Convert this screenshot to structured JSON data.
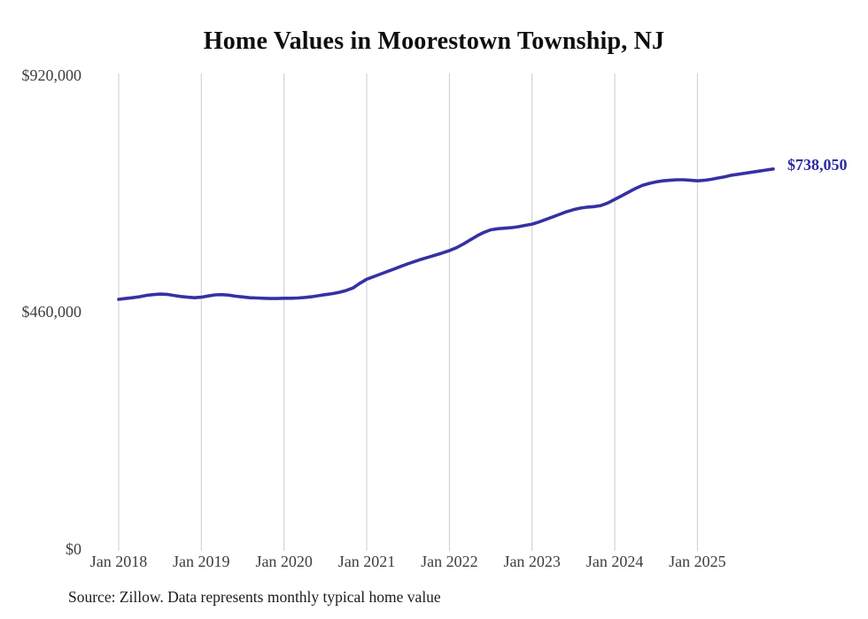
{
  "title": "Home Values in Moorestown Township, NJ",
  "source": "Source: Zillow. Data represents monthly typical home value",
  "colors": {
    "line": "#3531a3",
    "end_label": "#2d2b9e",
    "grid": "#cccccc",
    "axis_text": "#3e3e3e",
    "title_text": "#0e0e0e",
    "background": "#ffffff"
  },
  "chart_data": {
    "type": "line",
    "title": "Home Values in Moorestown Township, NJ",
    "xlabel": "",
    "ylabel": "",
    "ylim": [
      0,
      920000
    ],
    "grid": "vertical-only",
    "legend_position": "none",
    "last_value_label": "$738,050",
    "last_value": 738050,
    "y_ticks": [
      {
        "value": 920000,
        "label": "$920,000"
      },
      {
        "value": 460000,
        "label": "$460,000"
      },
      {
        "value": 0,
        "label": "$0"
      }
    ],
    "x_ticks": [
      {
        "month_index": 0,
        "label": "Jan 2018"
      },
      {
        "month_index": 12,
        "label": "Jan 2019"
      },
      {
        "month_index": 24,
        "label": "Jan 2020"
      },
      {
        "month_index": 36,
        "label": "Jan 2021"
      },
      {
        "month_index": 48,
        "label": "Jan 2022"
      },
      {
        "month_index": 60,
        "label": "Jan 2023"
      },
      {
        "month_index": 72,
        "label": "Jan 2024"
      },
      {
        "month_index": 84,
        "label": "Jan 2025"
      }
    ],
    "series": [
      {
        "name": "Monthly typical home value",
        "start": "2018-01",
        "frequency": "monthly",
        "values": [
          485000,
          486500,
          488000,
          490000,
          492500,
          494000,
          495000,
          494500,
          492500,
          490500,
          489000,
          488000,
          489000,
          491500,
          493500,
          494000,
          493000,
          491000,
          489500,
          488000,
          487500,
          487000,
          486500,
          486500,
          487000,
          487000,
          487500,
          488500,
          490000,
          492000,
          494000,
          496000,
          498500,
          502000,
          507000,
          516000,
          524000,
          529000,
          534000,
          539000,
          544000,
          549000,
          554000,
          558500,
          563000,
          567000,
          571000,
          575000,
          579500,
          585000,
          592000,
          600000,
          608000,
          615000,
          620000,
          622000,
          623000,
          624000,
          626000,
          628500,
          631000,
          635000,
          640000,
          645000,
          650000,
          655000,
          659000,
          662000,
          664000,
          665000,
          667000,
          672000,
          679000,
          686000,
          693000,
          700000,
          706000,
          710000,
          713000,
          715000,
          716000,
          717000,
          717000,
          716000,
          715000,
          716000,
          718000,
          720500,
          723000,
          726000,
          728000,
          730000,
          732000,
          734000,
          736000,
          738050
        ]
      }
    ]
  }
}
